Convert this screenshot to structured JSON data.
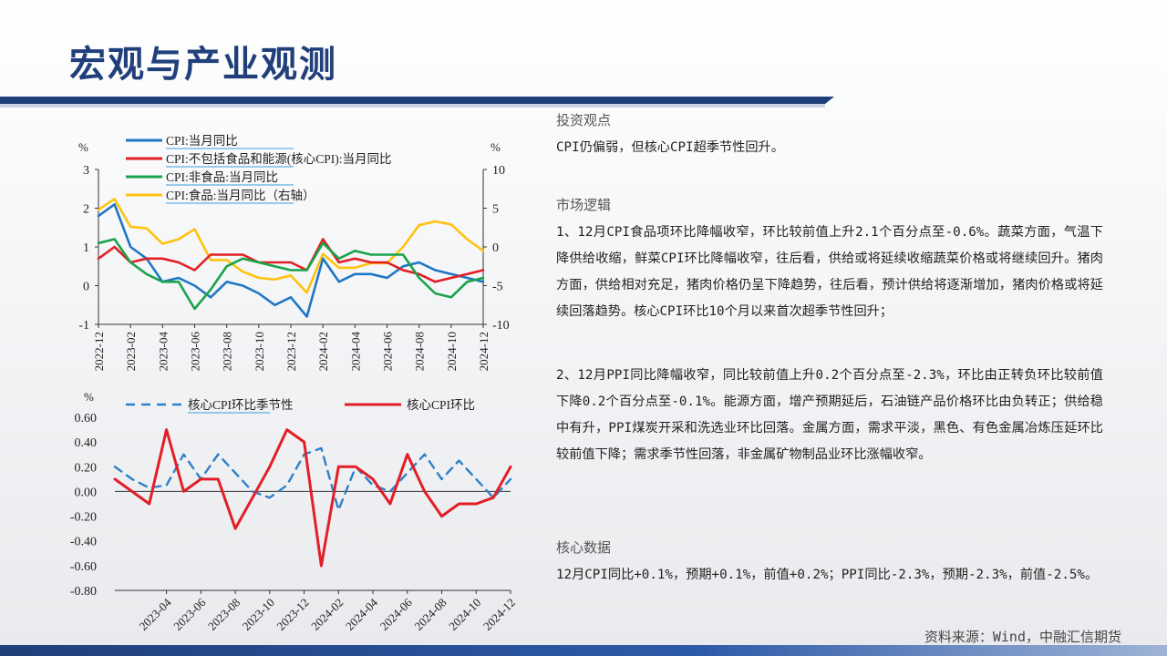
{
  "page": {
    "title": "宏观与产业观测",
    "source": "资料来源：Wind，中融汇信期货"
  },
  "sections": {
    "view_head": "投资观点",
    "view_text": "CPI仍偏弱，但核心CPI超季节性回升。",
    "logic_head": "市场逻辑",
    "logic_p1": "1、12月CPI食品项环比降幅收窄，环比较前值上升2.1个百分点至-0.6%。蔬菜方面，气温下降供给收缩，鲜菜CPI环比降幅收窄，往后看，供给或将延续收缩蔬菜价格或将继续回升。猪肉方面，供给相对充足，猪肉价格仍呈下降趋势，往后看，预计供给将逐渐增加，猪肉价格或将延续回落趋势。核心CPI环比10个月以来首次超季节性回升；",
    "logic_p2": "2、12月PPI同比降幅收窄，同比较前值上升0.2个百分点至-2.3%，环比由正转负环比较前值下降0.2个百分点至-0.1%。能源方面，增产预期延后，石油链产品价格环比由负转正；供给稳中有升，PPI煤炭开采和洗选业环比回落。金属方面，需求平淡，黑色、有色金属冶炼压延环比较前值下降；需求季节性回落，非金属矿物制品业环比涨幅收窄。",
    "data_head": "核心数据",
    "data_text": "12月CPI同比+0.1%，预期+0.1%，前值+0.2%；PPI同比-2.3%，预期-2.3%，前值-2.5%。"
  },
  "chart_data": [
    {
      "type": "line",
      "left_unit": "%",
      "right_unit": "%",
      "ylim_left": [
        -1,
        3
      ],
      "yticks_left": [
        "3",
        "2",
        "1",
        "0",
        "-1"
      ],
      "ylim_right": [
        -10,
        10
      ],
      "yticks_right": [
        "10",
        "5",
        "0",
        "-5",
        "-10"
      ],
      "x_ticks": [
        "2022-12",
        "2023-02",
        "2023-04",
        "2023-06",
        "2023-08",
        "2023-10",
        "2023-12",
        "2024-02",
        "2024-04",
        "2024-06",
        "2024-08",
        "2024-10",
        "2024-12"
      ],
      "x": [
        "2022-12",
        "2023-01",
        "2023-02",
        "2023-03",
        "2023-04",
        "2023-05",
        "2023-06",
        "2023-07",
        "2023-08",
        "2023-09",
        "2023-10",
        "2023-11",
        "2023-12",
        "2024-01",
        "2024-02",
        "2024-03",
        "2024-04",
        "2024-05",
        "2024-06",
        "2024-07",
        "2024-08",
        "2024-09",
        "2024-10",
        "2024-11",
        "2024-12"
      ],
      "series": [
        {
          "name": "CPI:当月同比",
          "color": "#1f77c4",
          "axis": "left",
          "values": [
            1.8,
            2.1,
            1.0,
            0.7,
            0.1,
            0.2,
            0.0,
            -0.3,
            0.1,
            0.0,
            -0.2,
            -0.5,
            -0.3,
            -0.8,
            0.7,
            0.1,
            0.3,
            0.3,
            0.2,
            0.5,
            0.6,
            0.4,
            0.3,
            0.2,
            0.1
          ]
        },
        {
          "name": "CPI:不包括食品和能源(核心CPI):当月同比",
          "color": "#e21e26",
          "axis": "left",
          "values": [
            0.7,
            1.0,
            0.6,
            0.7,
            0.7,
            0.6,
            0.4,
            0.8,
            0.8,
            0.8,
            0.6,
            0.6,
            0.6,
            0.4,
            1.2,
            0.6,
            0.7,
            0.6,
            0.6,
            0.4,
            0.3,
            0.1,
            0.2,
            0.3,
            0.4
          ]
        },
        {
          "name": "CPI:非食品:当月同比",
          "color": "#1aa34a",
          "axis": "left",
          "values": [
            1.1,
            1.2,
            0.6,
            0.3,
            0.1,
            0.1,
            -0.6,
            -0.1,
            0.5,
            0.7,
            0.6,
            0.5,
            0.4,
            0.4,
            1.1,
            0.7,
            0.9,
            0.8,
            0.8,
            0.8,
            0.2,
            -0.2,
            -0.3,
            0.1,
            0.2
          ]
        },
        {
          "name": "CPI:食品:当月同比（右轴）",
          "color": "#ffc20e",
          "axis": "right",
          "values": [
            4.8,
            6.2,
            2.6,
            2.4,
            0.4,
            1.0,
            2.3,
            -1.7,
            -1.7,
            -3.2,
            -4.0,
            -4.2,
            -3.7,
            -5.9,
            -0.9,
            -2.7,
            -2.7,
            -2.1,
            -2.1,
            0.0,
            2.8,
            3.3,
            2.9,
            1.0,
            -0.5
          ]
        }
      ]
    },
    {
      "type": "line",
      "unit": "%",
      "ylim": [
        -0.8,
        0.6
      ],
      "yticks": [
        "0.60",
        "0.40",
        "0.20",
        "0.00",
        "-0.20",
        "-0.40",
        "-0.60",
        "-0.80"
      ],
      "x_ticks": [
        "2023-04",
        "2023-06",
        "2023-08",
        "2023-10",
        "2023-12",
        "2024-02",
        "2024-04",
        "2024-06",
        "2024-08",
        "2024-10",
        "2024-12"
      ],
      "x": [
        "2023-01",
        "2023-02",
        "2023-03",
        "2023-04",
        "2023-05",
        "2023-06",
        "2023-07",
        "2023-08",
        "2023-09",
        "2023-10",
        "2023-11",
        "2023-12",
        "2024-01",
        "2024-02",
        "2024-03",
        "2024-04",
        "2024-05",
        "2024-06",
        "2024-07",
        "2024-08",
        "2024-09",
        "2024-10",
        "2024-11",
        "2024-12"
      ],
      "series": [
        {
          "name": "核心CPI环比季节性",
          "color": "#2e80c8",
          "style": "dashed",
          "values": [
            0.2,
            0.1,
            0.03,
            0.05,
            0.3,
            0.1,
            0.3,
            0.15,
            0.0,
            -0.05,
            0.05,
            0.3,
            0.35,
            -0.15,
            0.2,
            0.05,
            0.0,
            0.15,
            0.3,
            0.1,
            0.25,
            0.1,
            -0.05,
            0.1
          ]
        },
        {
          "name": "核心CPI环比",
          "color": "#e21e26",
          "style": "solid",
          "values": [
            0.1,
            0.0,
            -0.1,
            0.5,
            0.0,
            0.1,
            0.1,
            -0.3,
            -0.05,
            0.2,
            0.5,
            0.4,
            -0.6,
            0.2,
            0.2,
            0.1,
            -0.1,
            0.3,
            0.0,
            -0.2,
            -0.1,
            -0.1,
            -0.05,
            0.2
          ]
        }
      ]
    }
  ]
}
